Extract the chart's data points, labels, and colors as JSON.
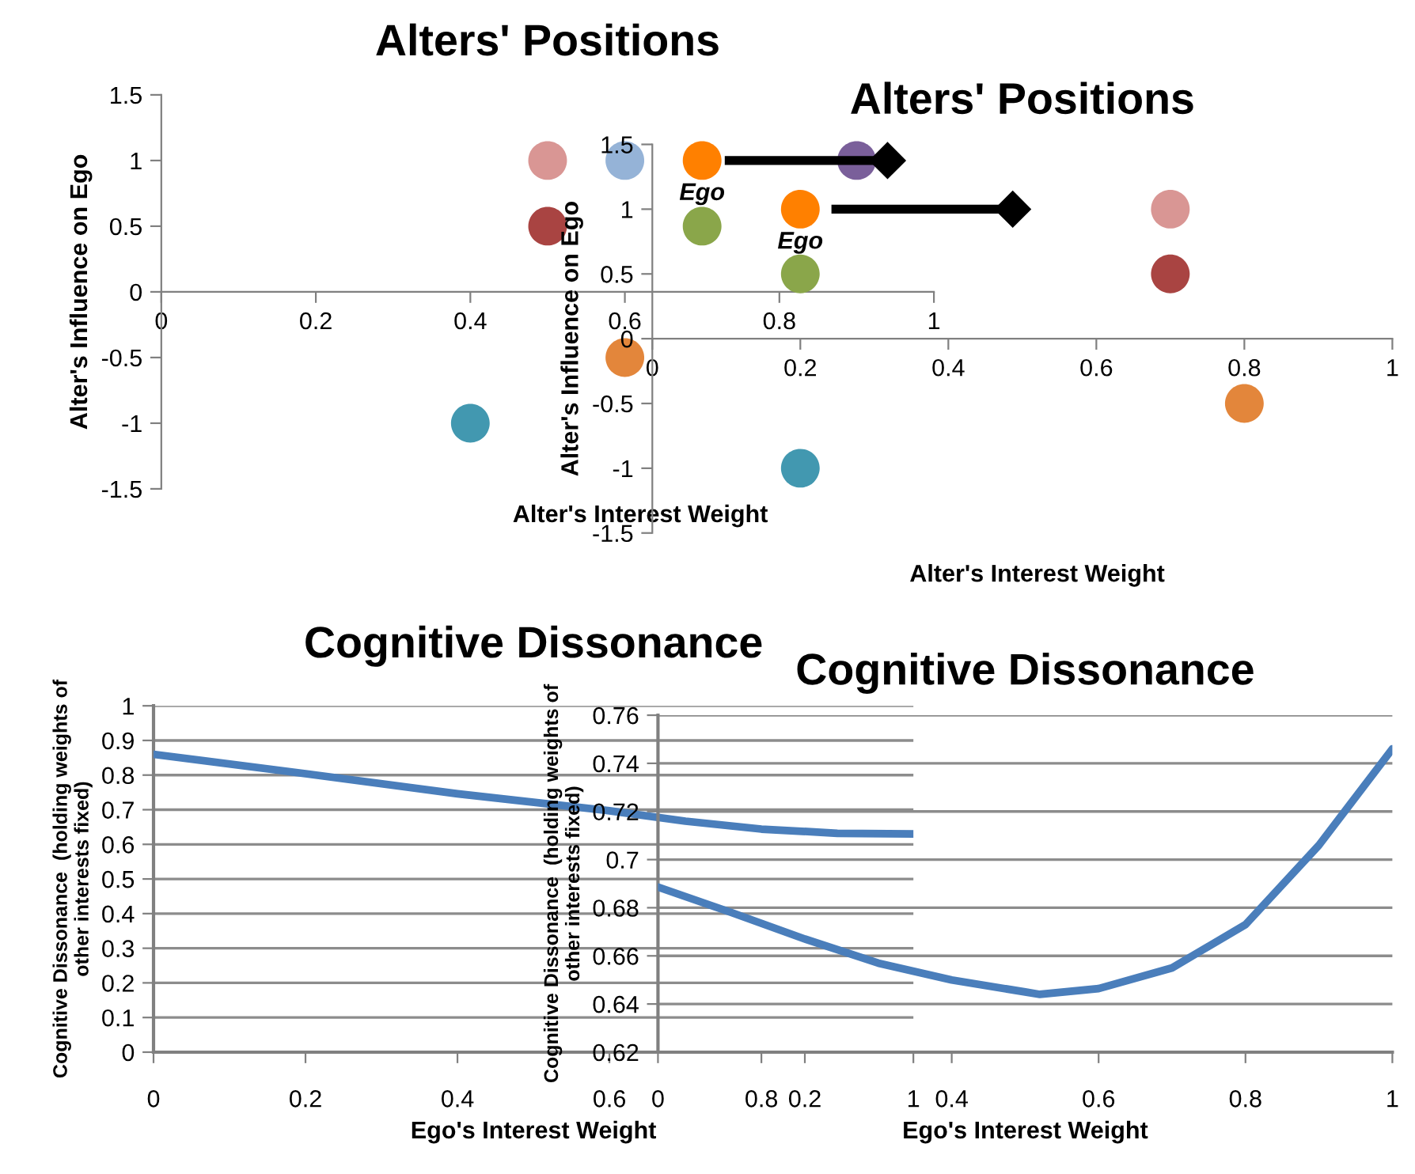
{
  "chart_data": [
    {
      "type": "scatter",
      "title": "Alters' Positions",
      "xlabel": "Alter's Interest Weight",
      "ylabel": "Alter's Influence on Ego",
      "xlim": [
        0,
        1
      ],
      "ylim": [
        -1.5,
        1.5
      ],
      "xticks": [
        0,
        0.2,
        0.4,
        0.6,
        0.8,
        1
      ],
      "yticks": [
        -1.5,
        -1,
        -0.5,
        0,
        0.5,
        1,
        1.5
      ],
      "grid": false,
      "legend": false,
      "marker": "circle",
      "series": [
        {
          "x": [
            0.5,
            0.6,
            0.5,
            0.7,
            0.9,
            0.6,
            0.4
          ],
          "values": [
            1,
            1,
            0.5,
            0.5,
            1,
            -0.5,
            -1
          ],
          "colors": [
            "#d99694",
            "#95b3d7",
            "#a94442",
            "#8aa64a",
            "#7a5f9a",
            "#e3863b",
            "#4298b0"
          ]
        },
        {
          "name": "Ego",
          "x": [
            0.7
          ],
          "values": [
            1
          ],
          "color": "#ff8000"
        },
        {
          "type": "line",
          "x": [
            0.735,
            0.94
          ],
          "values": [
            1,
            1
          ],
          "color": "#000000",
          "marker": "diamond"
        }
      ]
    },
    {
      "type": "scatter",
      "title": "Alters' Positions",
      "xlabel": "Alter's Interest Weight",
      "ylabel": "Alter's Influence on Ego",
      "xlim": [
        0,
        1
      ],
      "ylim": [
        -1.5,
        1.5
      ],
      "xticks": [
        0,
        0.2,
        0.4,
        0.6,
        0.8,
        1
      ],
      "yticks": [
        -1.5,
        -1,
        -0.5,
        0,
        0.5,
        1,
        1.5
      ],
      "grid": false,
      "legend": false,
      "marker": "circle",
      "series": [
        {
          "x": [
            0.7,
            0.7,
            0.2,
            0.8,
            0.2
          ],
          "values": [
            1,
            0.5,
            0.5,
            -0.5,
            -1
          ],
          "colors": [
            "#d99694",
            "#a94442",
            "#8aa64a",
            "#e3863b",
            "#4298b0"
          ]
        },
        {
          "name": "Ego",
          "x": [
            0.2
          ],
          "values": [
            1
          ],
          "color": "#ff8000"
        },
        {
          "type": "line",
          "x": [
            0.248,
            0.487
          ],
          "values": [
            1,
            1
          ],
          "color": "#000000",
          "marker": "diamond"
        }
      ]
    },
    {
      "type": "line",
      "title": "Cognitive Dissonance",
      "xlabel": "Ego's Interest Weight",
      "ylabel": "Cognitive Dissonance  (holding weights of\nother interests fixed)",
      "xlim": [
        0,
        1
      ],
      "ylim": [
        0,
        1
      ],
      "xticks": [
        0,
        0.2,
        0.4,
        0.6,
        0.8,
        1
      ],
      "yticks": [
        0,
        0.1,
        0.2,
        0.3,
        0.4,
        0.5,
        0.6,
        0.7,
        0.8,
        0.9,
        1
      ],
      "grid": "y",
      "legend": false,
      "marker": "none",
      "line_style": "solid",
      "series": [
        {
          "color": "#4a7ebb",
          "x": [
            0,
            0.2,
            0.4,
            0.6,
            0.7,
            0.8,
            0.9,
            1
          ],
          "values": [
            0.86,
            0.804,
            0.746,
            0.697,
            0.667,
            0.644,
            0.632,
            0.63
          ]
        }
      ]
    },
    {
      "type": "line",
      "title": "Cognitive Dissonance",
      "xlabel": "Ego's Interest Weight",
      "ylabel": "Cognitive Dissonance  (holding weights of\nother interests fixed)",
      "xlim": [
        0,
        1
      ],
      "ylim": [
        0.62,
        0.76
      ],
      "xticks": [
        0,
        0.2,
        0.4,
        0.6,
        0.8,
        1
      ],
      "yticks": [
        0.62,
        0.64,
        0.66,
        0.68,
        0.7,
        0.72,
        0.74,
        0.76
      ],
      "grid": "y",
      "legend": false,
      "marker": "none",
      "line_style": "solid",
      "series": [
        {
          "color": "#4a7ebb",
          "x": [
            0,
            0.1,
            0.2,
            0.3,
            0.4,
            0.5,
            0.52,
            0.6,
            0.7,
            0.8,
            0.9,
            1
          ],
          "values": [
            0.6886,
            0.678,
            0.667,
            0.657,
            0.65,
            0.645,
            0.644,
            0.6464,
            0.655,
            0.673,
            0.706,
            0.746
          ]
        }
      ]
    }
  ]
}
